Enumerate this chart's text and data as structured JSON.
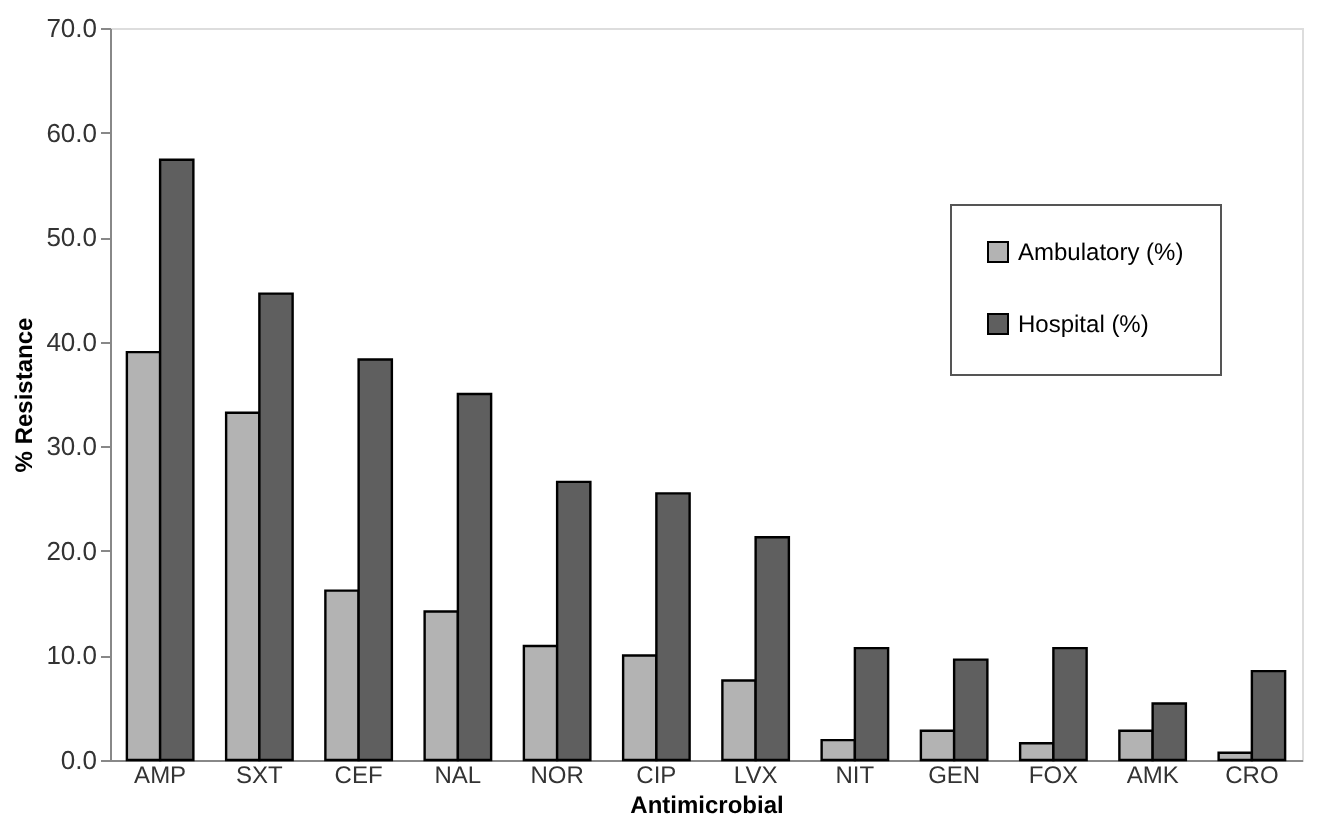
{
  "chart_data": {
    "type": "bar",
    "xlabel": "Antimicrobial",
    "ylabel": "% Resistance",
    "categories": [
      "AMP",
      "SXT",
      "CEF",
      "NAL",
      "NOR",
      "CIP",
      "LVX",
      "NIT",
      "GEN",
      "FOX",
      "AMK",
      "CRO"
    ],
    "series": [
      {
        "name": "Ambulatory (%)",
        "color": "#b3b3b3",
        "values": [
          39.0,
          33.2,
          16.2,
          14.2,
          10.9,
          10.0,
          7.6,
          1.9,
          2.8,
          1.6,
          2.8,
          0.7
        ]
      },
      {
        "name": "Hospital (%)",
        "color": "#5f5f5f",
        "values": [
          57.4,
          44.6,
          38.3,
          35.0,
          26.6,
          25.5,
          21.3,
          10.7,
          9.6,
          10.7,
          5.4,
          8.5
        ]
      }
    ],
    "ylim": [
      0,
      70
    ],
    "yticks": [
      {
        "value": 0,
        "label": "0.0"
      },
      {
        "value": 10,
        "label": "10.0"
      },
      {
        "value": 20,
        "label": "20.0"
      },
      {
        "value": 30,
        "label": "30.0"
      },
      {
        "value": 40,
        "label": "40.0"
      },
      {
        "value": 50,
        "label": "50.0"
      },
      {
        "value": 60,
        "label": "60.0"
      },
      {
        "value": 70,
        "label": "70.0"
      }
    ],
    "legend": "top right",
    "grid": false
  }
}
